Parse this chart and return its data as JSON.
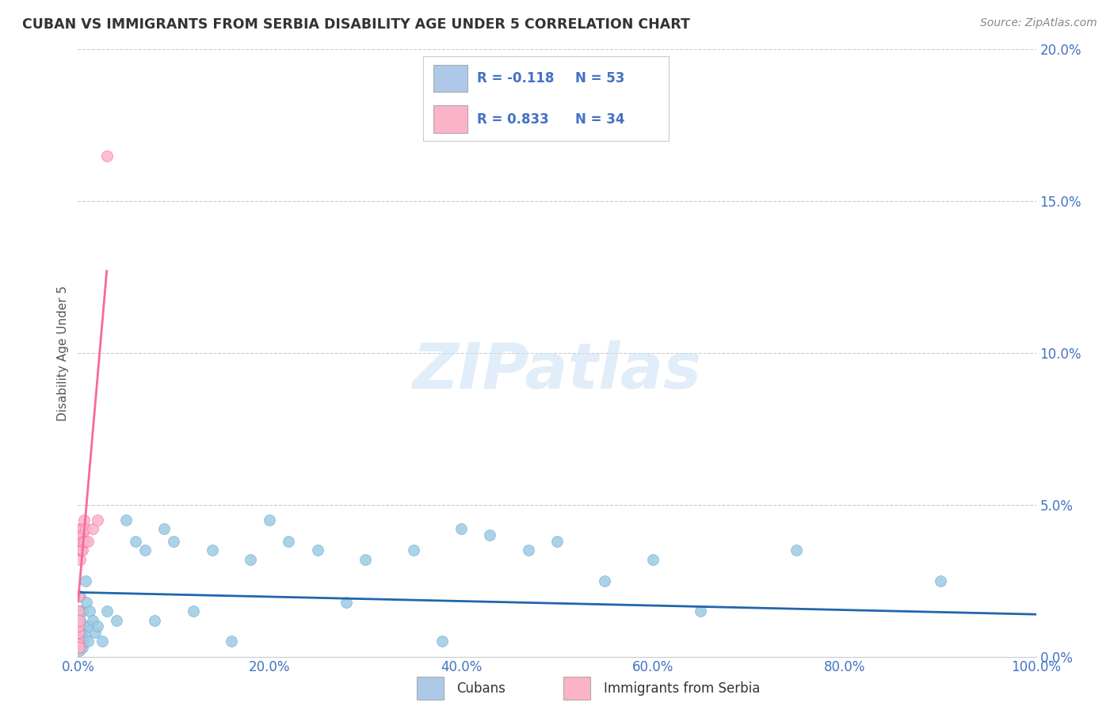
{
  "title": "CUBAN VS IMMIGRANTS FROM SERBIA DISABILITY AGE UNDER 5 CORRELATION CHART",
  "source": "Source: ZipAtlas.com",
  "ylabel": "Disability Age Under 5",
  "xlim": [
    0.0,
    100.0
  ],
  "ylim": [
    0.0,
    20.0
  ],
  "xticks": [
    0.0,
    20.0,
    40.0,
    60.0,
    80.0,
    100.0
  ],
  "yticks": [
    0.0,
    5.0,
    10.0,
    15.0,
    20.0
  ],
  "background_color": "#ffffff",
  "grid_color": "#cccccc",
  "cubans": {
    "x": [
      0.1,
      0.2,
      0.15,
      0.3,
      0.25,
      0.18,
      0.12,
      0.22,
      0.28,
      0.35,
      0.4,
      0.5,
      0.45,
      0.6,
      0.55,
      0.7,
      0.8,
      0.9,
      1.0,
      1.1,
      1.2,
      1.5,
      1.8,
      2.0,
      2.5,
      3.0,
      4.0,
      5.0,
      6.0,
      7.0,
      8.0,
      9.0,
      10.0,
      12.0,
      14.0,
      16.0,
      18.0,
      20.0,
      22.0,
      25.0,
      28.0,
      30.0,
      35.0,
      38.0,
      40.0,
      43.0,
      47.0,
      50.0,
      55.0,
      60.0,
      65.0,
      75.0,
      90.0
    ],
    "y": [
      0.5,
      1.0,
      1.5,
      0.3,
      2.0,
      0.8,
      0.2,
      1.2,
      0.6,
      0.4,
      0.8,
      1.5,
      0.3,
      1.0,
      0.5,
      0.7,
      2.5,
      1.8,
      0.5,
      1.0,
      1.5,
      1.2,
      0.8,
      1.0,
      0.5,
      1.5,
      1.2,
      4.5,
      3.8,
      3.5,
      1.2,
      4.2,
      3.8,
      1.5,
      3.5,
      0.5,
      3.2,
      4.5,
      3.8,
      3.5,
      1.8,
      3.2,
      3.5,
      0.5,
      4.2,
      4.0,
      3.5,
      3.8,
      2.5,
      3.2,
      1.5,
      3.5,
      2.5
    ],
    "color": "#9ecae1",
    "edge_color": "#6baed6",
    "R": -0.118,
    "N": 53,
    "line_color": "#2166ac"
  },
  "serbia": {
    "x": [
      0.02,
      0.03,
      0.04,
      0.05,
      0.06,
      0.07,
      0.08,
      0.09,
      0.1,
      0.12,
      0.14,
      0.16,
      0.18,
      0.2,
      0.22,
      0.25,
      0.28,
      0.3,
      0.32,
      0.35,
      0.38,
      0.4,
      0.42,
      0.45,
      0.48,
      0.5,
      0.55,
      0.6,
      0.7,
      0.8,
      1.0,
      1.5,
      2.0,
      3.0
    ],
    "y": [
      0.3,
      0.5,
      0.8,
      1.0,
      1.5,
      0.4,
      2.0,
      0.3,
      1.2,
      3.5,
      3.8,
      4.0,
      3.2,
      4.2,
      3.5,
      3.8,
      4.0,
      3.5,
      4.2,
      3.8,
      3.5,
      4.0,
      3.8,
      4.2,
      3.5,
      4.0,
      3.8,
      4.5,
      3.8,
      4.2,
      3.8,
      4.2,
      4.5,
      16.5
    ],
    "color": "#fbb4c7",
    "edge_color": "#f768a1",
    "R": 0.833,
    "N": 34,
    "line_color": "#f768a1"
  },
  "legend_box_cuban": "#aec9e8",
  "legend_box_serbia": "#fbb4c7",
  "title_color": "#333333",
  "title_fontsize": 12.5,
  "ylabel_color": "#555555",
  "tick_color": "#4472c4",
  "source_color": "#888888",
  "legend_text_color": "#4472c4",
  "legend_r_color_cuban": "#4472c4",
  "legend_r_color_serbia": "#4472c4",
  "legend_n_color": "#4472c4"
}
